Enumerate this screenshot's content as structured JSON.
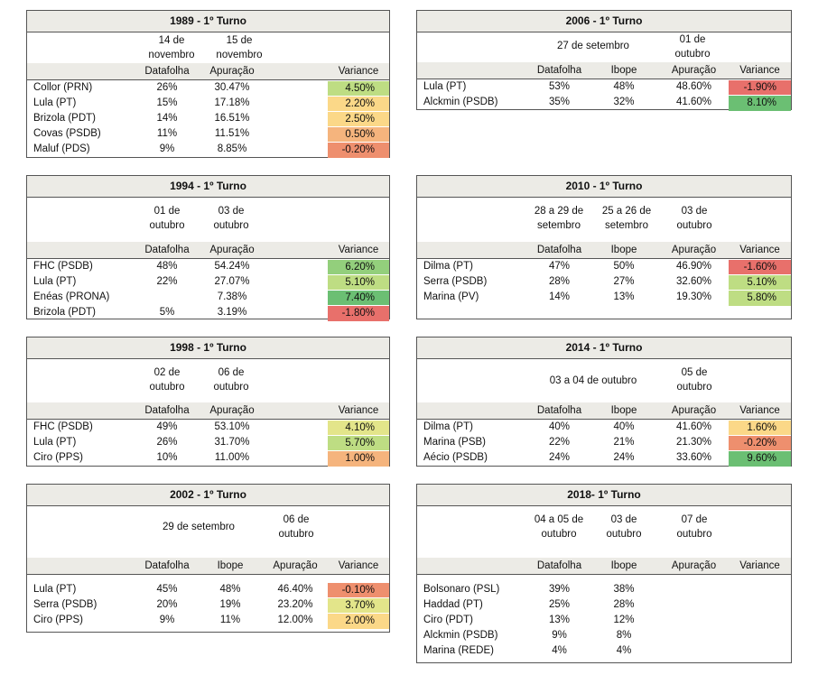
{
  "colors": {
    "header_bg": "#ecebe6",
    "variance_scale": [
      "#e8706b",
      "#ee8f6e",
      "#f5b47d",
      "#fbd888",
      "#e3e58a",
      "#bedd83",
      "#93cf7c",
      "#6bbf73"
    ]
  },
  "t1989": {
    "title": "1989 - 1º Turno",
    "dates": [
      "14 de novembro",
      "15 de novembro"
    ],
    "cols": [
      "Datafolha",
      "Apuração",
      "Variance"
    ],
    "rows": [
      {
        "c": "Collor (PRN)",
        "d": "26%",
        "a": "30.47%",
        "v": "4.50%"
      },
      {
        "c": "Lula (PT)",
        "d": "15%",
        "a": "17.18%",
        "v": "2.20%"
      },
      {
        "c": "Brizola (PDT)",
        "d": "14%",
        "a": "16.51%",
        "v": "2.50%"
      },
      {
        "c": "Covas (PSDB)",
        "d": "11%",
        "a": "11.51%",
        "v": "0.50%"
      },
      {
        "c": "Maluf (PDS)",
        "d": "9%",
        "a": "8.85%",
        "v": "-0.20%"
      }
    ]
  },
  "t1994": {
    "title": "1994 - 1º Turno",
    "dates": [
      "01 de outubro",
      "03 de outubro"
    ],
    "cols": [
      "Datafolha",
      "Apuração",
      "Variance"
    ],
    "rows": [
      {
        "c": "FHC (PSDB)",
        "d": "48%",
        "a": "54.24%",
        "v": "6.20%"
      },
      {
        "c": "Lula (PT)",
        "d": "22%",
        "a": "27.07%",
        "v": "5.10%"
      },
      {
        "c": "Enéas (PRONA)",
        "d": "",
        "a": "7.38%",
        "v": "7.40%"
      },
      {
        "c": "Brizola (PDT)",
        "d": "5%",
        "a": "3.19%",
        "v": "-1.80%"
      }
    ]
  },
  "t1998": {
    "title": "1998 - 1º Turno",
    "dates": [
      "02 de outubro",
      "06 de outubro"
    ],
    "cols": [
      "Datafolha",
      "Apuração",
      "Variance"
    ],
    "rows": [
      {
        "c": "FHC (PSDB)",
        "d": "49%",
        "a": "53.10%",
        "v": "4.10%"
      },
      {
        "c": "Lula (PT)",
        "d": "26%",
        "a": "31.70%",
        "v": "5.70%"
      },
      {
        "c": "Ciro (PPS)",
        "d": "10%",
        "a": "11.00%",
        "v": "1.00%"
      }
    ]
  },
  "t2002": {
    "title": "2002 - 1º Turno",
    "dates": [
      "29 de setembro",
      "06 de outubro"
    ],
    "cols": [
      "Datafolha",
      "Ibope",
      "Apuração",
      "Variance"
    ],
    "rows": [
      {
        "c": "Lula (PT)",
        "d": "45%",
        "i": "48%",
        "a": "46.40%",
        "v": "-0.10%"
      },
      {
        "c": "Serra (PSDB)",
        "d": "20%",
        "i": "19%",
        "a": "23.20%",
        "v": "3.70%"
      },
      {
        "c": "Ciro (PPS)",
        "d": "9%",
        "i": "11%",
        "a": "12.00%",
        "v": "2.00%"
      }
    ]
  },
  "t2006": {
    "title": "2006 - 1º Turno",
    "dates": [
      "27 de setembro",
      "01 de outubro"
    ],
    "cols": [
      "Datafolha",
      "Ibope",
      "Apuração",
      "Variance"
    ],
    "rows": [
      {
        "c": "Lula (PT)",
        "d": "53%",
        "i": "48%",
        "a": "48.60%",
        "v": "-1.90%"
      },
      {
        "c": "Alckmin (PSDB)",
        "d": "35%",
        "i": "32%",
        "a": "41.60%",
        "v": "8.10%"
      }
    ]
  },
  "t2010": {
    "title": "2010 - 1º Turno",
    "dates": [
      "28 a 29 de setembro",
      "25 a 26 de setembro",
      "03 de outubro"
    ],
    "cols": [
      "Datafolha",
      "Ibope",
      "Apuração",
      "Variance"
    ],
    "rows": [
      {
        "c": "Dilma (PT)",
        "d": "47%",
        "i": "50%",
        "a": "46.90%",
        "v": "-1.60%"
      },
      {
        "c": "Serra (PSDB)",
        "d": "28%",
        "i": "27%",
        "a": "32.60%",
        "v": "5.10%"
      },
      {
        "c": "Marina (PV)",
        "d": "14%",
        "i": "13%",
        "a": "19.30%",
        "v": "5.80%"
      }
    ]
  },
  "t2014": {
    "title": "2014 - 1º Turno",
    "dates": [
      "03 a 04 de outubro",
      "05 de outubro"
    ],
    "cols": [
      "Datafolha",
      "Ibope",
      "Apuração",
      "Variance"
    ],
    "rows": [
      {
        "c": "Dilma (PT)",
        "d": "40%",
        "i": "40%",
        "a": "41.60%",
        "v": "1.60%"
      },
      {
        "c": "Marina (PSB)",
        "d": "22%",
        "i": "21%",
        "a": "21.30%",
        "v": "-0.20%"
      },
      {
        "c": "Aécio (PSDB)",
        "d": "24%",
        "i": "24%",
        "a": "33.60%",
        "v": "9.60%"
      }
    ]
  },
  "t2018": {
    "title": "2018- 1º Turno",
    "dates": [
      "04 a 05 de outubro",
      "03 de outubro",
      "07 de outubro"
    ],
    "cols": [
      "Datafolha",
      "Ibope",
      "Apuração",
      "Variance"
    ],
    "rows": [
      {
        "c": "Bolsonaro (PSL)",
        "d": "39%",
        "i": "38%",
        "a": "",
        "v": ""
      },
      {
        "c": "Haddad (PT)",
        "d": "25%",
        "i": "28%",
        "a": "",
        "v": ""
      },
      {
        "c": "Ciro (PDT)",
        "d": "13%",
        "i": "12%",
        "a": "",
        "v": ""
      },
      {
        "c": "Alckmin (PSDB)",
        "d": "9%",
        "i": "8%",
        "a": "",
        "v": ""
      },
      {
        "c": "Marina (REDE)",
        "d": "4%",
        "i": "4%",
        "a": "",
        "v": ""
      }
    ]
  }
}
